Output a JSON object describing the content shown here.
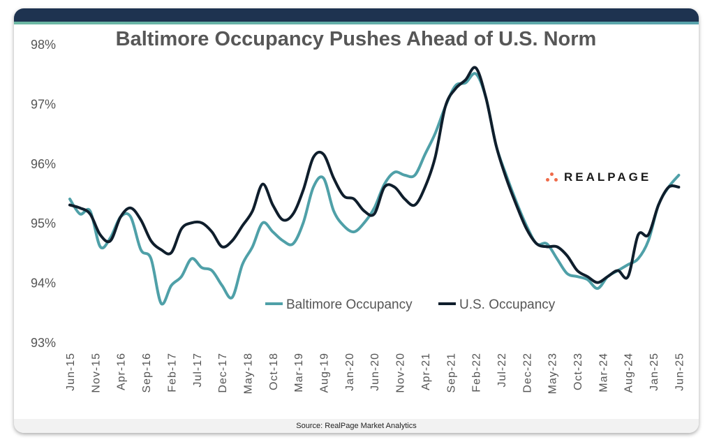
{
  "source": "Source: RealPage Market Analytics",
  "logo": {
    "text": "REALPAGE",
    "dot_color": "#ef6b4a"
  },
  "colors": {
    "header": "#1e3350",
    "stripe": "#5fb0a8",
    "baltimore": "#4fa0a8",
    "us": "#0f1e2c"
  },
  "chart_data": {
    "type": "line",
    "title": "Baltimore Occupancy Pushes Ahead of U.S. Norm",
    "xlabel": "",
    "ylabel": "",
    "ylim": [
      93,
      98
    ],
    "y_ticks": [
      "93%",
      "94%",
      "95%",
      "96%",
      "97%",
      "98%"
    ],
    "y_tick_values": [
      93,
      94,
      95,
      96,
      97,
      98
    ],
    "x_tick_labels": [
      "Jun-15",
      "Nov-15",
      "Apr-16",
      "Sep-16",
      "Feb-17",
      "Jul-17",
      "Dec-17",
      "May-18",
      "Oct-18",
      "Mar-19",
      "Aug-19",
      "Jan-20",
      "Jun-20",
      "Nov-20",
      "Apr-21",
      "Sep-21",
      "Feb-22",
      "Jul-22",
      "Dec-22",
      "May-23",
      "Oct-23",
      "Mar-24",
      "Aug-24",
      "Jan-25",
      "Jun-25"
    ],
    "grid": false,
    "legend_position": "bottom-center inside plot",
    "x": [
      "2015-06",
      "2015-08",
      "2015-10",
      "2015-12",
      "2016-02",
      "2016-04",
      "2016-06",
      "2016-08",
      "2016-10",
      "2016-12",
      "2017-02",
      "2017-04",
      "2017-06",
      "2017-08",
      "2017-10",
      "2017-12",
      "2018-02",
      "2018-04",
      "2018-06",
      "2018-08",
      "2018-10",
      "2018-12",
      "2019-02",
      "2019-04",
      "2019-06",
      "2019-08",
      "2019-10",
      "2019-12",
      "2020-02",
      "2020-04",
      "2020-06",
      "2020-08",
      "2020-10",
      "2020-12",
      "2021-02",
      "2021-04",
      "2021-06",
      "2021-08",
      "2021-10",
      "2021-12",
      "2022-02",
      "2022-04",
      "2022-06",
      "2022-08",
      "2022-10",
      "2022-12",
      "2023-02",
      "2023-04",
      "2023-06",
      "2023-08",
      "2023-10",
      "2023-12",
      "2024-02",
      "2024-04",
      "2024-06",
      "2024-08",
      "2024-10",
      "2024-12",
      "2025-02",
      "2025-04",
      "2025-06"
    ],
    "series": [
      {
        "name": "Baltimore Occupancy",
        "color": "#4fa0a8",
        "values": [
          95.4,
          95.15,
          95.2,
          94.6,
          94.75,
          95.1,
          95.1,
          94.55,
          94.4,
          93.65,
          93.95,
          94.1,
          94.4,
          94.25,
          94.2,
          93.95,
          93.75,
          94.3,
          94.6,
          95.0,
          94.85,
          94.7,
          94.65,
          95.0,
          95.6,
          95.75,
          95.2,
          94.95,
          94.85,
          95.0,
          95.25,
          95.65,
          95.85,
          95.8,
          95.8,
          96.15,
          96.5,
          96.95,
          97.3,
          97.35,
          97.5,
          97.1,
          96.3,
          95.8,
          95.35,
          94.95,
          94.65,
          94.65,
          94.4,
          94.15,
          94.1,
          94.05,
          93.9,
          94.1,
          94.2,
          94.3,
          94.4,
          94.7,
          95.3,
          95.6,
          95.8
        ]
      },
      {
        "name": "U.S. Occupancy",
        "color": "#0f1e2c",
        "values": [
          95.3,
          95.25,
          95.15,
          94.8,
          94.7,
          95.1,
          95.25,
          95.05,
          94.7,
          94.55,
          94.5,
          94.9,
          95.0,
          95.0,
          94.85,
          94.6,
          94.7,
          94.95,
          95.2,
          95.65,
          95.3,
          95.05,
          95.15,
          95.55,
          96.1,
          96.15,
          95.75,
          95.45,
          95.4,
          95.2,
          95.15,
          95.6,
          95.6,
          95.4,
          95.3,
          95.6,
          96.1,
          96.95,
          97.25,
          97.4,
          97.6,
          97.1,
          96.3,
          95.75,
          95.3,
          94.9,
          94.65,
          94.6,
          94.6,
          94.45,
          94.2,
          94.1,
          94.0,
          94.1,
          94.2,
          94.1,
          94.8,
          94.8,
          95.3,
          95.6,
          95.6
        ]
      }
    ]
  }
}
